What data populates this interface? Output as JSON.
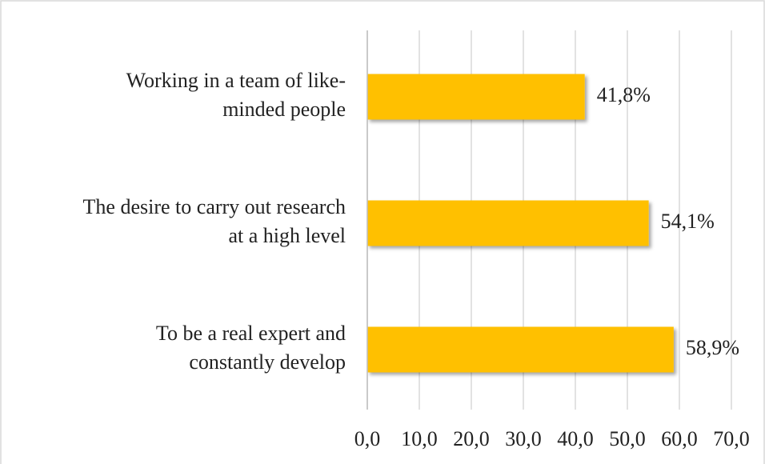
{
  "chart_data": {
    "type": "hbar",
    "categories": [
      [
        "Working in a team of like-",
        "minded people"
      ],
      [
        "The desire to carry out research",
        "at a high level"
      ],
      [
        "To be a real expert and",
        "constantly develop"
      ]
    ],
    "values": [
      41.8,
      54.1,
      58.9
    ],
    "value_labels": [
      "41,8%",
      "54,1%",
      "58,9%"
    ],
    "color": "#ffc000",
    "xlim": [
      0,
      70
    ],
    "xticks": [
      {
        "value": 0,
        "label": "0,0"
      },
      {
        "value": 10,
        "label": "10,0"
      },
      {
        "value": 20,
        "label": "20,0"
      },
      {
        "value": 30,
        "label": "30,0"
      },
      {
        "value": 40,
        "label": "40,0"
      },
      {
        "value": 50,
        "label": "50,0"
      },
      {
        "value": 60,
        "label": "60,0"
      },
      {
        "value": 70,
        "label": "70,0"
      }
    ],
    "grid": true
  }
}
